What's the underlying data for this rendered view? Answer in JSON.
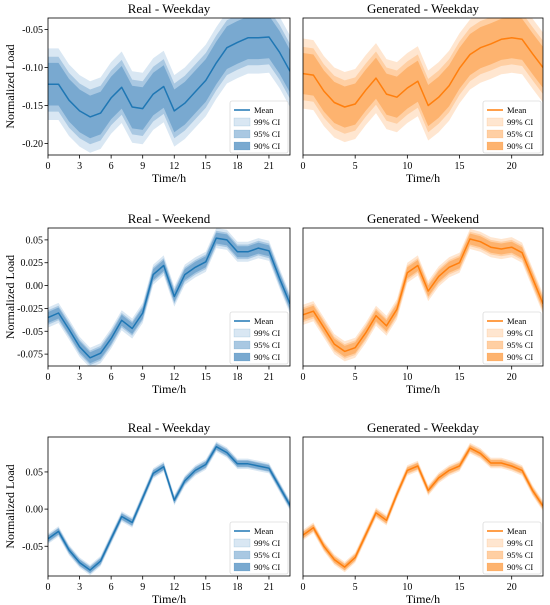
{
  "colors": {
    "real": "#1f77b4",
    "real_band_light": "#d9e7f3",
    "real_band_mid": "#a9c8e2",
    "real_band_dark": "#79a9d0",
    "generated": "#ff7f0e",
    "generated_band_light": "#ffe6d0",
    "generated_band_mid": "#ffcfa3",
    "generated_band_dark": "#fdb36f"
  },
  "legend": {
    "labels": [
      "Mean",
      "99% CI",
      "95% CI",
      "90% CI"
    ],
    "placement": "lower-right"
  },
  "chart_data": [
    {
      "type": "line",
      "title": "Real - Weekday",
      "xlabel": "Time/h",
      "ylabel": "Normalized Load",
      "xlim": [
        0,
        23
      ],
      "ylim": [
        -0.215,
        -0.035
      ],
      "xticks": [
        0,
        3,
        6,
        9,
        12,
        15,
        18,
        21
      ],
      "yticks": [
        -0.05,
        -0.1,
        -0.15,
        -0.2
      ],
      "x": [
        0,
        1,
        2,
        3,
        4,
        5,
        6,
        7,
        8,
        9,
        10,
        11,
        12,
        13,
        14,
        15,
        16,
        17,
        18,
        19,
        20,
        21,
        22,
        23
      ],
      "series": [
        {
          "name": "Mean",
          "values": [
            -0.122,
            -0.122,
            -0.143,
            -0.157,
            -0.165,
            -0.16,
            -0.14,
            -0.126,
            -0.152,
            -0.154,
            -0.135,
            -0.125,
            -0.157,
            -0.147,
            -0.132,
            -0.117,
            -0.094,
            -0.074,
            -0.067,
            -0.061,
            -0.061,
            -0.06,
            -0.08,
            -0.105
          ]
        }
      ],
      "ci_halfwidth": {
        "90": 0.028,
        "95": 0.036,
        "99": 0.047
      },
      "legend": [
        "Mean",
        "99% CI",
        "95% CI",
        "90% CI"
      ]
    },
    {
      "type": "line",
      "title": "Generated - Weekday",
      "xlabel": "Time/h",
      "ylabel": "",
      "xlim": [
        0,
        23
      ],
      "ylim": [
        -0.215,
        -0.035
      ],
      "xticks": [
        0,
        5,
        10,
        15,
        20
      ],
      "yticks": [],
      "x": [
        0,
        1,
        2,
        3,
        4,
        5,
        6,
        7,
        8,
        9,
        10,
        11,
        12,
        13,
        14,
        15,
        16,
        17,
        18,
        19,
        20,
        21,
        22,
        23
      ],
      "series": [
        {
          "name": "Mean",
          "values": [
            -0.108,
            -0.11,
            -0.131,
            -0.146,
            -0.152,
            -0.148,
            -0.13,
            -0.114,
            -0.135,
            -0.139,
            -0.127,
            -0.118,
            -0.15,
            -0.139,
            -0.124,
            -0.101,
            -0.083,
            -0.074,
            -0.069,
            -0.063,
            -0.061,
            -0.063,
            -0.082,
            -0.1
          ]
        }
      ],
      "ci_halfwidth": {
        "90": 0.027,
        "95": 0.035,
        "99": 0.046
      },
      "legend": [
        "Mean",
        "99% CI",
        "95% CI",
        "90% CI"
      ]
    },
    {
      "type": "line",
      "title": "Real - Weekend",
      "xlabel": "Time/h",
      "ylabel": "Normalized Load",
      "xlim": [
        0,
        23
      ],
      "ylim": [
        -0.088,
        0.063
      ],
      "xticks": [
        0,
        3,
        6,
        9,
        12,
        15,
        18,
        21
      ],
      "yticks": [
        0.05,
        0.025,
        0.0,
        -0.025,
        -0.05,
        -0.075
      ],
      "x": [
        0,
        1,
        2,
        3,
        4,
        5,
        6,
        7,
        8,
        9,
        10,
        11,
        12,
        13,
        14,
        15,
        16,
        17,
        18,
        19,
        20,
        21,
        22,
        23
      ],
      "series": [
        {
          "name": "Mean",
          "values": [
            -0.035,
            -0.03,
            -0.048,
            -0.067,
            -0.079,
            -0.074,
            -0.058,
            -0.038,
            -0.047,
            -0.03,
            0.012,
            0.022,
            -0.012,
            0.012,
            0.02,
            0.026,
            0.052,
            0.05,
            0.037,
            0.037,
            0.041,
            0.038,
            0.008,
            -0.02
          ]
        }
      ],
      "ci_halfwidth": {
        "90": 0.006,
        "95": 0.008,
        "99": 0.011
      },
      "legend": [
        "Mean",
        "99% CI",
        "95% CI",
        "90% CI"
      ]
    },
    {
      "type": "line",
      "title": "Generated - Weekend",
      "xlabel": "Time/h",
      "ylabel": "",
      "xlim": [
        0,
        23
      ],
      "ylim": [
        -0.088,
        0.063
      ],
      "xticks": [
        0,
        5,
        10,
        15,
        20
      ],
      "yticks": [],
      "x": [
        0,
        1,
        2,
        3,
        4,
        5,
        6,
        7,
        8,
        9,
        10,
        11,
        12,
        13,
        14,
        15,
        16,
        17,
        18,
        19,
        20,
        21,
        22,
        23
      ],
      "series": [
        {
          "name": "Mean",
          "values": [
            -0.032,
            -0.028,
            -0.046,
            -0.064,
            -0.072,
            -0.068,
            -0.052,
            -0.033,
            -0.044,
            -0.026,
            0.014,
            0.022,
            -0.006,
            0.01,
            0.02,
            0.025,
            0.051,
            0.048,
            0.042,
            0.04,
            0.042,
            0.036,
            0.008,
            -0.02
          ]
        }
      ],
      "ci_halfwidth": {
        "90": 0.006,
        "95": 0.008,
        "99": 0.011
      },
      "legend": [
        "Mean",
        "99% CI",
        "95% CI",
        "90% CI"
      ]
    },
    {
      "type": "line",
      "title": "Real - Weekday",
      "xlabel": "Time/h",
      "ylabel": "Normalized Load",
      "xlim": [
        0,
        23
      ],
      "ylim": [
        -0.09,
        0.097
      ],
      "xticks": [
        0,
        3,
        6,
        9,
        12,
        15,
        18,
        21
      ],
      "yticks": [
        0.05,
        0.0,
        -0.05
      ],
      "x": [
        0,
        1,
        2,
        3,
        4,
        5,
        6,
        7,
        8,
        9,
        10,
        11,
        12,
        13,
        14,
        15,
        16,
        17,
        18,
        19,
        20,
        21,
        22,
        23
      ],
      "series": [
        {
          "name": "Mean",
          "values": [
            -0.04,
            -0.03,
            -0.055,
            -0.072,
            -0.082,
            -0.07,
            -0.04,
            -0.01,
            -0.018,
            0.015,
            0.048,
            0.057,
            0.012,
            0.038,
            0.052,
            0.06,
            0.084,
            0.076,
            0.061,
            0.061,
            0.058,
            0.055,
            0.03,
            0.005
          ]
        }
      ],
      "ci_halfwidth": {
        "90": 0.004,
        "95": 0.005,
        "99": 0.007
      },
      "legend": [
        "Mean",
        "99% CI",
        "95% CI",
        "90% CI"
      ]
    },
    {
      "type": "line",
      "title": "Generated - Weekday",
      "xlabel": "Time/h",
      "ylabel": "",
      "xlim": [
        0,
        23
      ],
      "ylim": [
        -0.09,
        0.097
      ],
      "xticks": [
        0,
        5,
        10,
        15,
        20
      ],
      "yticks": [],
      "x": [
        0,
        1,
        2,
        3,
        4,
        5,
        6,
        7,
        8,
        9,
        10,
        11,
        12,
        13,
        14,
        15,
        16,
        17,
        18,
        19,
        20,
        21,
        22,
        23
      ],
      "series": [
        {
          "name": "Mean",
          "values": [
            -0.035,
            -0.025,
            -0.05,
            -0.068,
            -0.078,
            -0.065,
            -0.035,
            -0.005,
            -0.015,
            0.02,
            0.052,
            0.058,
            0.025,
            0.042,
            0.052,
            0.058,
            0.082,
            0.075,
            0.062,
            0.062,
            0.058,
            0.052,
            0.025,
            0.004
          ]
        }
      ],
      "ci_halfwidth": {
        "90": 0.004,
        "95": 0.005,
        "99": 0.007
      },
      "legend": [
        "Mean",
        "99% CI",
        "95% CI",
        "90% CI"
      ]
    }
  ]
}
